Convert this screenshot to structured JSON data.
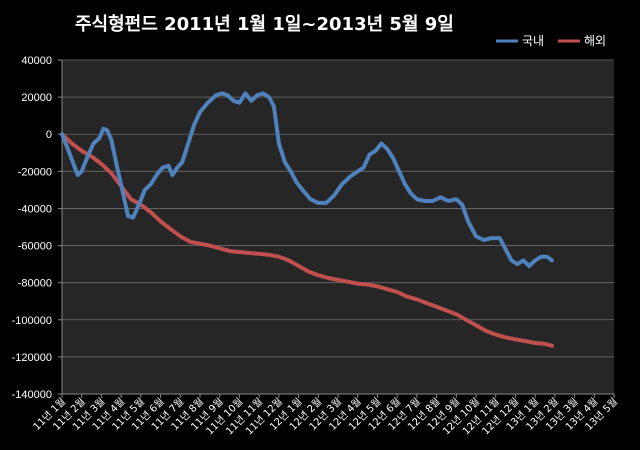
{
  "chart_data": {
    "type": "line",
    "title": "주식형펀드    2011년 1월 1일~2013년 5월 9일",
    "xlabel": "",
    "ylabel": "",
    "ylim": [
      -140000,
      40000
    ],
    "yticks": [
      40000,
      20000,
      0,
      -20000,
      -40000,
      -60000,
      -80000,
      -100000,
      -120000,
      -140000
    ],
    "grid": true,
    "legend_position": "top-right",
    "background": "#000000",
    "plot_background": "#262626",
    "x": [
      "11년 1월",
      "11년 2월",
      "11년 3월",
      "11년 4월",
      "11년 5월",
      "11년 6월",
      "11년 7월",
      "11년 8월",
      "11년 9월",
      "11년 10월",
      "11년 11월",
      "11년 12월",
      "12년 1월",
      "12년 2월",
      "12년 3월",
      "12년 4월",
      "12년 5월",
      "12년 6월",
      "12년 7월",
      "12년 8월",
      "12년 9월",
      "12년 10월",
      "12년 11월",
      "12년 12월",
      "13년 1월",
      "13년 2월",
      "13년 3월",
      "13년 4월",
      "13년 5월"
    ],
    "series": [
      {
        "name": "국내",
        "color": "#4f81bd",
        "points": [
          [
            0,
            0
          ],
          [
            0.3,
            -8000
          ],
          [
            0.55,
            -15000
          ],
          [
            0.8,
            -22000
          ],
          [
            1.0,
            -20000
          ],
          [
            1.3,
            -12000
          ],
          [
            1.6,
            -5000
          ],
          [
            1.9,
            -2000
          ],
          [
            2.1,
            3000
          ],
          [
            2.3,
            2000
          ],
          [
            2.5,
            -3000
          ],
          [
            2.8,
            -18000
          ],
          [
            3.1,
            -32000
          ],
          [
            3.35,
            -44000
          ],
          [
            3.6,
            -45000
          ],
          [
            3.9,
            -38000
          ],
          [
            4.2,
            -30000
          ],
          [
            4.5,
            -27000
          ],
          [
            4.8,
            -22000
          ],
          [
            5.1,
            -18000
          ],
          [
            5.4,
            -17000
          ],
          [
            5.6,
            -22000
          ],
          [
            5.85,
            -18000
          ],
          [
            6.1,
            -15000
          ],
          [
            6.4,
            -5000
          ],
          [
            6.7,
            5000
          ],
          [
            7.0,
            12000
          ],
          [
            7.4,
            17000
          ],
          [
            7.8,
            21000
          ],
          [
            8.1,
            22000
          ],
          [
            8.4,
            21000
          ],
          [
            8.7,
            18000
          ],
          [
            9.0,
            17000
          ],
          [
            9.3,
            22000
          ],
          [
            9.6,
            18000
          ],
          [
            9.9,
            21000
          ],
          [
            10.2,
            22000
          ],
          [
            10.5,
            20000
          ],
          [
            10.75,
            15000
          ],
          [
            11.0,
            -5000
          ],
          [
            11.3,
            -15000
          ],
          [
            11.6,
            -20000
          ],
          [
            11.9,
            -26000
          ],
          [
            12.2,
            -30000
          ],
          [
            12.6,
            -35000
          ],
          [
            13.0,
            -37000
          ],
          [
            13.4,
            -37000
          ],
          [
            13.8,
            -33000
          ],
          [
            14.2,
            -27000
          ],
          [
            14.6,
            -23000
          ],
          [
            15.0,
            -20000
          ],
          [
            15.3,
            -18000
          ],
          [
            15.6,
            -11000
          ],
          [
            15.9,
            -9000
          ],
          [
            16.2,
            -5000
          ],
          [
            16.5,
            -8000
          ],
          [
            16.8,
            -13000
          ],
          [
            17.1,
            -20000
          ],
          [
            17.4,
            -27000
          ],
          [
            17.7,
            -32000
          ],
          [
            18.0,
            -35000
          ],
          [
            18.4,
            -36000
          ],
          [
            18.8,
            -36000
          ],
          [
            19.2,
            -34000
          ],
          [
            19.6,
            -36000
          ],
          [
            20.0,
            -35000
          ],
          [
            20.3,
            -38000
          ],
          [
            20.6,
            -47000
          ],
          [
            21.0,
            -55000
          ],
          [
            21.4,
            -57000
          ],
          [
            21.8,
            -56000
          ],
          [
            22.2,
            -56000
          ],
          [
            22.5,
            -62000
          ],
          [
            22.8,
            -68000
          ],
          [
            23.1,
            -70000
          ],
          [
            23.4,
            -68000
          ],
          [
            23.7,
            -71000
          ],
          [
            24.0,
            -68000
          ],
          [
            24.3,
            -66000
          ],
          [
            24.6,
            -66000
          ],
          [
            24.85,
            -68000
          ]
        ]
      },
      {
        "name": "해외",
        "color": "#c0504d",
        "points": [
          [
            0,
            0
          ],
          [
            0.5,
            -5000
          ],
          [
            1.0,
            -9000
          ],
          [
            1.5,
            -12000
          ],
          [
            2.0,
            -16000
          ],
          [
            2.5,
            -21000
          ],
          [
            3.0,
            -28000
          ],
          [
            3.5,
            -35000
          ],
          [
            4.0,
            -38000
          ],
          [
            4.5,
            -42000
          ],
          [
            5.0,
            -47000
          ],
          [
            5.5,
            -51000
          ],
          [
            6.0,
            -55000
          ],
          [
            6.5,
            -58000
          ],
          [
            7.0,
            -59000
          ],
          [
            7.5,
            -60000
          ],
          [
            8.0,
            -61500
          ],
          [
            8.5,
            -63000
          ],
          [
            9.0,
            -63500
          ],
          [
            9.5,
            -64000
          ],
          [
            10.0,
            -64500
          ],
          [
            10.5,
            -65000
          ],
          [
            11.0,
            -66000
          ],
          [
            11.5,
            -68000
          ],
          [
            12.0,
            -71000
          ],
          [
            12.5,
            -74000
          ],
          [
            13.0,
            -76000
          ],
          [
            13.5,
            -77500
          ],
          [
            14.0,
            -78500
          ],
          [
            14.5,
            -79500
          ],
          [
            15.0,
            -80500
          ],
          [
            15.5,
            -81000
          ],
          [
            16.0,
            -82000
          ],
          [
            16.5,
            -83500
          ],
          [
            17.0,
            -85000
          ],
          [
            17.5,
            -87500
          ],
          [
            18.0,
            -89000
          ],
          [
            18.5,
            -91000
          ],
          [
            19.0,
            -93000
          ],
          [
            19.5,
            -95000
          ],
          [
            20.0,
            -97000
          ],
          [
            20.5,
            -100000
          ],
          [
            21.0,
            -103000
          ],
          [
            21.5,
            -106000
          ],
          [
            22.0,
            -108000
          ],
          [
            22.5,
            -109500
          ],
          [
            23.0,
            -110500
          ],
          [
            23.5,
            -111500
          ],
          [
            24.0,
            -112500
          ],
          [
            24.5,
            -113000
          ],
          [
            24.85,
            -114000
          ]
        ]
      }
    ]
  }
}
